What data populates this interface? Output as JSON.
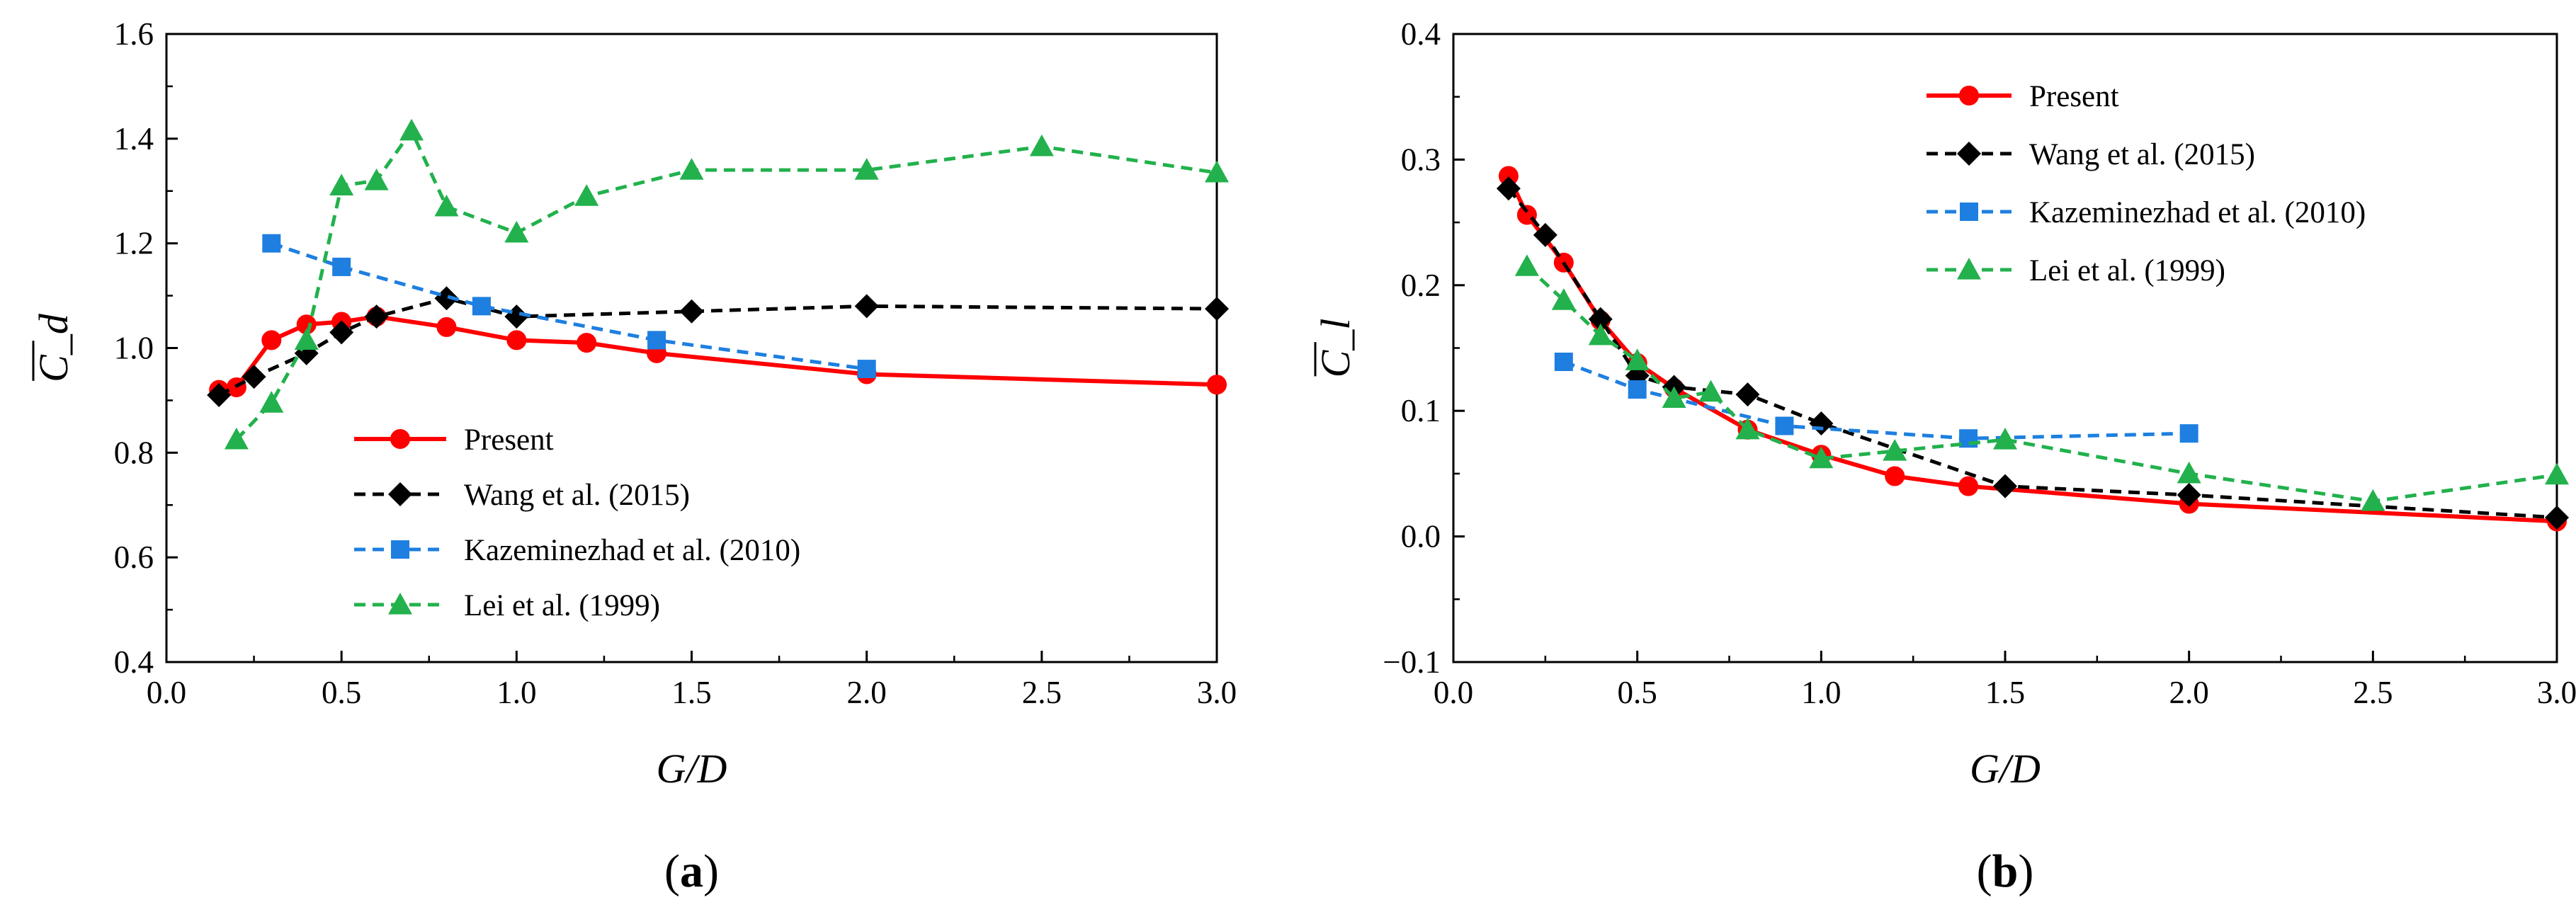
{
  "chart_data": [
    {
      "type": "line",
      "panel_label": "(a)",
      "panel_letter": "a",
      "xlabel": "G/D",
      "ylabel": "C_d",
      "xlim": [
        0.0,
        3.0
      ],
      "ylim": [
        0.4,
        1.6
      ],
      "xticks": [
        "0.0",
        "0.5",
        "1.0",
        "1.5",
        "2.0",
        "2.5",
        "3.0"
      ],
      "yticks": [
        "0.4",
        "0.6",
        "0.8",
        "1.0",
        "1.2",
        "1.4",
        "1.6"
      ],
      "legend_position": "bottom-center",
      "series": [
        {
          "name": "Present",
          "color": "#ff0000",
          "marker": "circle",
          "dash": "solid",
          "x": [
            0.15,
            0.2,
            0.3,
            0.4,
            0.5,
            0.6,
            0.8,
            1.0,
            1.2,
            1.4,
            2.0,
            3.0
          ],
          "y": [
            0.92,
            0.925,
            1.015,
            1.045,
            1.05,
            1.06,
            1.04,
            1.015,
            1.01,
            0.99,
            0.95,
            0.93
          ]
        },
        {
          "name": "Wang et al. (2015)",
          "color": "#000000",
          "marker": "diamond",
          "dash": "dashed",
          "x": [
            0.15,
            0.25,
            0.4,
            0.5,
            0.6,
            0.8,
            1.0,
            1.5,
            2.0,
            3.0
          ],
          "y": [
            0.91,
            0.945,
            0.99,
            1.03,
            1.06,
            1.095,
            1.06,
            1.07,
            1.08,
            1.075
          ]
        },
        {
          "name": "Kazeminezhad et al. (2010)",
          "color": "#1e7fe0",
          "marker": "square",
          "dash": "dashed",
          "x": [
            0.3,
            0.5,
            0.9,
            1.4,
            2.0
          ],
          "y": [
            1.2,
            1.155,
            1.08,
            1.015,
            0.96
          ]
        },
        {
          "name": "Lei et al. (1999)",
          "color": "#22b14c",
          "marker": "triangle",
          "dash": "dashed",
          "x": [
            0.2,
            0.3,
            0.4,
            0.5,
            0.6,
            0.7,
            0.8,
            1.0,
            1.2,
            1.5,
            2.0,
            2.5,
            3.0
          ],
          "y": [
            0.825,
            0.895,
            1.015,
            1.31,
            1.32,
            1.415,
            1.27,
            1.22,
            1.29,
            1.34,
            1.34,
            1.385,
            1.335
          ]
        }
      ]
    },
    {
      "type": "line",
      "panel_label": "(b)",
      "panel_letter": "b",
      "xlabel": "G/D",
      "ylabel": "C_l",
      "xlim": [
        0.0,
        3.0
      ],
      "ylim": [
        -0.1,
        0.4
      ],
      "xticks": [
        "0.0",
        "0.5",
        "1.0",
        "1.5",
        "2.0",
        "2.5",
        "3.0"
      ],
      "yticks": [
        "−0.1",
        "0.0",
        "0.1",
        "0.2",
        "0.3",
        "0.4"
      ],
      "legend_position": "top-left",
      "series": [
        {
          "name": "Present",
          "color": "#ff0000",
          "marker": "circle",
          "dash": "solid",
          "x": [
            0.15,
            0.2,
            0.3,
            0.4,
            0.5,
            0.6,
            0.8,
            1.0,
            1.2,
            1.4,
            2.0,
            3.0
          ],
          "y": [
            0.287,
            0.256,
            0.218,
            0.172,
            0.138,
            0.118,
            0.085,
            0.065,
            0.048,
            0.04,
            0.026,
            0.012
          ]
        },
        {
          "name": "Wang et al. (2015)",
          "color": "#000000",
          "marker": "diamond",
          "dash": "dashed",
          "x": [
            0.15,
            0.25,
            0.4,
            0.5,
            0.6,
            0.8,
            1.0,
            1.5,
            2.0,
            3.0
          ],
          "y": [
            0.277,
            0.24,
            0.173,
            0.128,
            0.119,
            0.113,
            0.09,
            0.04,
            0.033,
            0.015
          ]
        },
        {
          "name": "Kazeminezhad et al. (2010)",
          "color": "#1e7fe0",
          "marker": "square",
          "dash": "dashed",
          "x": [
            0.3,
            0.5,
            0.9,
            1.4,
            2.0
          ],
          "y": [
            0.139,
            0.117,
            0.088,
            0.078,
            0.082
          ]
        },
        {
          "name": "Lei et al. (1999)",
          "color": "#22b14c",
          "marker": "triangle",
          "dash": "dashed",
          "x": [
            0.2,
            0.3,
            0.4,
            0.5,
            0.6,
            0.7,
            0.8,
            1.0,
            1.2,
            1.5,
            2.0,
            2.5,
            3.0
          ],
          "y": [
            0.215,
            0.188,
            0.16,
            0.14,
            0.11,
            0.115,
            0.085,
            0.062,
            0.068,
            0.077,
            0.05,
            0.028,
            0.049
          ]
        }
      ]
    }
  ]
}
